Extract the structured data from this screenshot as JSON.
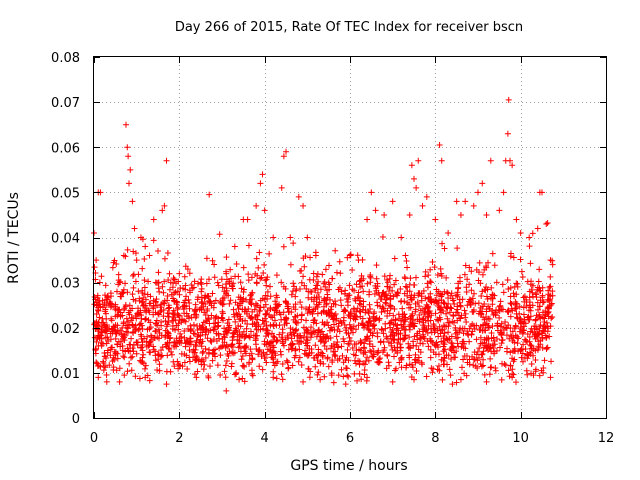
{
  "chart_data": {
    "type": "scatter",
    "title": "Day 266 of 2015, Rate Of TEC Index for receiver bscn",
    "xlabel": "GPS time / hours",
    "ylabel": "ROTI / TECUs",
    "xlim": [
      0,
      12
    ],
    "ylim": [
      0,
      0.08
    ],
    "xticks": [
      0,
      2,
      4,
      6,
      8,
      10,
      12
    ],
    "yticks": [
      0,
      0.01,
      0.02,
      0.03,
      0.04,
      0.05,
      0.06,
      0.07,
      0.08
    ],
    "xtick_labels": [
      "0",
      "2",
      "4",
      "6",
      "8",
      "10",
      "12"
    ],
    "ytick_labels": [
      "0",
      "0.01",
      "0.02",
      "0.03",
      "0.04",
      "0.05",
      "0.06",
      "0.07",
      "0.08"
    ],
    "grid": true,
    "marker": "+",
    "color": "#ff0000",
    "series": [
      {
        "name": "ROTI",
        "points": [
          [
            0.0,
            0.041
          ],
          [
            0.05,
            0.035
          ],
          [
            0.1,
            0.05
          ],
          [
            0.15,
            0.05
          ],
          [
            0.2,
            0.026
          ],
          [
            0.3,
            0.025
          ],
          [
            0.4,
            0.027
          ],
          [
            0.5,
            0.024
          ],
          [
            0.6,
            0.03
          ],
          [
            0.7,
            0.036
          ],
          [
            0.75,
            0.065
          ],
          [
            0.78,
            0.06
          ],
          [
            0.8,
            0.058
          ],
          [
            0.82,
            0.052
          ],
          [
            0.85,
            0.055
          ],
          [
            0.9,
            0.048
          ],
          [
            0.95,
            0.042
          ],
          [
            1.0,
            0.035
          ],
          [
            1.1,
            0.04
          ],
          [
            1.2,
            0.038
          ],
          [
            1.3,
            0.036
          ],
          [
            1.4,
            0.044
          ],
          [
            1.5,
            0.037
          ],
          [
            1.6,
            0.046
          ],
          [
            1.65,
            0.047
          ],
          [
            1.7,
            0.057
          ],
          [
            1.8,
            0.03
          ],
          [
            2.0,
            0.032
          ],
          [
            2.2,
            0.033
          ],
          [
            2.5,
            0.03
          ],
          [
            2.7,
            0.0495
          ],
          [
            2.9,
            0.03
          ],
          [
            3.1,
            0.032
          ],
          [
            3.3,
            0.038
          ],
          [
            3.5,
            0.044
          ],
          [
            3.6,
            0.044
          ],
          [
            3.8,
            0.047
          ],
          [
            3.9,
            0.052
          ],
          [
            3.95,
            0.054
          ],
          [
            4.0,
            0.046
          ],
          [
            4.2,
            0.04
          ],
          [
            4.4,
            0.051
          ],
          [
            4.45,
            0.058
          ],
          [
            4.5,
            0.059
          ],
          [
            4.6,
            0.04
          ],
          [
            4.8,
            0.049
          ],
          [
            4.9,
            0.047
          ],
          [
            5.0,
            0.04
          ],
          [
            5.2,
            0.036
          ],
          [
            5.5,
            0.03
          ],
          [
            5.8,
            0.028
          ],
          [
            6.0,
            0.036
          ],
          [
            6.2,
            0.035
          ],
          [
            6.4,
            0.044
          ],
          [
            6.5,
            0.05
          ],
          [
            6.6,
            0.046
          ],
          [
            6.8,
            0.045
          ],
          [
            7.0,
            0.048
          ],
          [
            7.2,
            0.04
          ],
          [
            7.3,
            0.036
          ],
          [
            7.4,
            0.045
          ],
          [
            7.45,
            0.056
          ],
          [
            7.5,
            0.053
          ],
          [
            7.55,
            0.051
          ],
          [
            7.6,
            0.057
          ],
          [
            7.7,
            0.047
          ],
          [
            7.8,
            0.049
          ],
          [
            8.0,
            0.044
          ],
          [
            8.1,
            0.0605
          ],
          [
            8.15,
            0.057
          ],
          [
            8.3,
            0.041
          ],
          [
            8.5,
            0.048
          ],
          [
            8.6,
            0.045
          ],
          [
            8.7,
            0.048
          ],
          [
            8.9,
            0.047
          ],
          [
            9.0,
            0.05
          ],
          [
            9.1,
            0.052
          ],
          [
            9.2,
            0.045
          ],
          [
            9.3,
            0.057
          ],
          [
            9.5,
            0.046
          ],
          [
            9.6,
            0.05
          ],
          [
            9.65,
            0.057
          ],
          [
            9.7,
            0.063
          ],
          [
            9.72,
            0.0705
          ],
          [
            9.75,
            0.057
          ],
          [
            9.8,
            0.056
          ],
          [
            9.9,
            0.044
          ],
          [
            10.0,
            0.041
          ],
          [
            10.2,
            0.04
          ],
          [
            10.4,
            0.042
          ],
          [
            10.45,
            0.05
          ],
          [
            10.5,
            0.05
          ],
          [
            10.6,
            0.043
          ],
          [
            10.7,
            0.035
          ],
          [
            10.75,
            0.034
          ],
          [
            0.1,
            0.009
          ],
          [
            0.3,
            0.008
          ],
          [
            0.6,
            0.008
          ],
          [
            1.2,
            0.009
          ],
          [
            1.7,
            0.0075
          ],
          [
            2.4,
            0.009
          ],
          [
            3.1,
            0.006
          ],
          [
            3.4,
            0.0085
          ],
          [
            4.2,
            0.009
          ],
          [
            4.9,
            0.008
          ],
          [
            5.3,
            0.0085
          ],
          [
            5.9,
            0.0075
          ],
          [
            6.4,
            0.009
          ],
          [
            7.0,
            0.008
          ],
          [
            7.5,
            0.0085
          ],
          [
            8.4,
            0.0075
          ],
          [
            8.6,
            0.0085
          ],
          [
            9.2,
            0.008
          ],
          [
            9.8,
            0.009
          ],
          [
            10.3,
            0.0095
          ],
          [
            10.7,
            0.009
          ]
        ]
      }
    ]
  }
}
